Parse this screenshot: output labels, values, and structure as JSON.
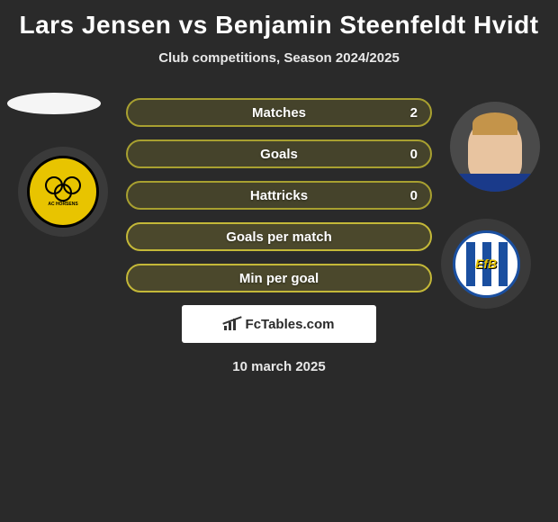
{
  "title": "Lars Jensen vs Benjamin Steenfeldt Hvidt",
  "subtitle": "Club competitions, Season 2024/2025",
  "players": {
    "left": {
      "name": "Lars Jensen",
      "club_short": "AC HORSENS"
    },
    "right": {
      "name": "Benjamin Steenfeldt Hvidt",
      "club_short": "EfB"
    }
  },
  "stats": [
    {
      "label": "Matches",
      "value_right": "2",
      "color": "#a8a030"
    },
    {
      "label": "Goals",
      "value_right": "0",
      "color": "#a8a030"
    },
    {
      "label": "Hattricks",
      "value_right": "0",
      "color": "#a8a030"
    },
    {
      "label": "Goals per match",
      "value_right": "",
      "color": "#c4b838"
    },
    {
      "label": "Min per goal",
      "value_right": "",
      "color": "#c4b838"
    }
  ],
  "branding": "FcTables.com",
  "date": "10 march 2025",
  "colors": {
    "background": "#2a2a2a",
    "text": "#ffffff",
    "club_left_bg": "#e8c400",
    "club_right_border": "#1a4fa0",
    "branding_bg": "#ffffff",
    "branding_text": "#2a2a2a"
  }
}
